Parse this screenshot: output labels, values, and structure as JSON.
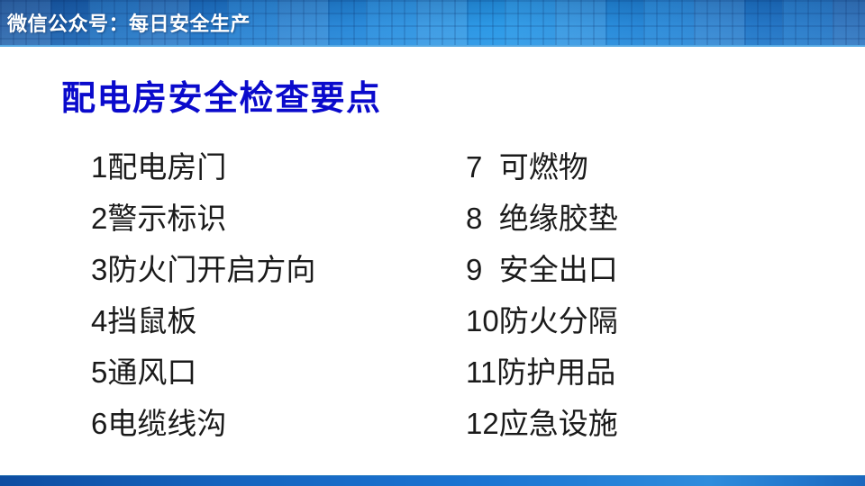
{
  "slide": {
    "header": {
      "account_label": "微信公众号：每日安全生产"
    },
    "title": "配电房安全检查要点",
    "checklist": {
      "left": [
        "1配电房门",
        "2警示标识",
        "3防火门开启方向",
        "4挡鼠板",
        "5通风口",
        "6电缆线沟"
      ],
      "right": [
        "7  可燃物",
        "8  绝缘胶垫",
        "9  安全出口",
        "10防火分隔",
        "11防护用品",
        "12应急设施"
      ]
    },
    "colors": {
      "title_text": "#0a0acc",
      "banner_blue_dark": "#17549f",
      "banner_blue_light": "#2495e5",
      "banner_edge_light": "#55a9e4",
      "footer_blue": "#1b74d2",
      "body_text": "#1a1a1a",
      "background": "#ffffff"
    }
  }
}
